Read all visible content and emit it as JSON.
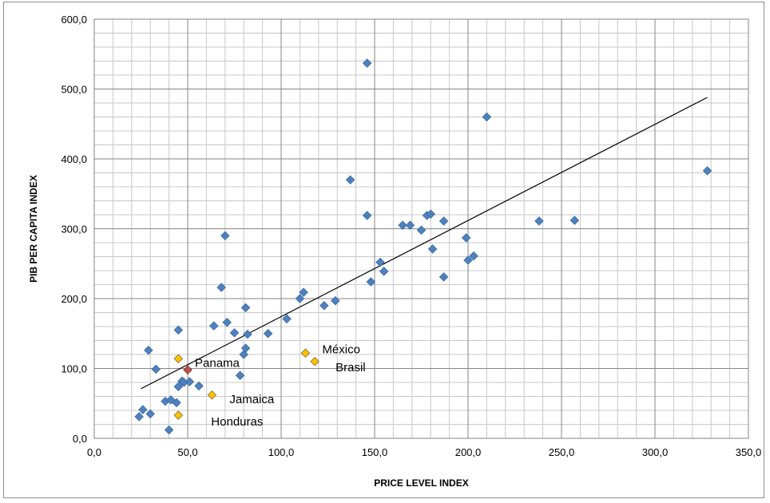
{
  "chart_data": {
    "type": "scatter",
    "title": "",
    "xlabel": "PRICE LEVEL INDEX",
    "ylabel": "PIB PER CAPITA INDEX",
    "xlim": [
      0,
      350
    ],
    "ylim": [
      0,
      600
    ],
    "x_major_ticks": [
      0,
      50,
      100,
      150,
      200,
      250,
      300,
      350
    ],
    "y_major_ticks": [
      0,
      100,
      200,
      300,
      400,
      500,
      600
    ],
    "x_tick_labels": [
      "0,0",
      "50,0",
      "100,0",
      "150,0",
      "200,0",
      "250,0",
      "300,0",
      "350,0"
    ],
    "y_tick_labels": [
      "0,0",
      "100,0",
      "200,0",
      "300,0",
      "400,0",
      "500,0",
      "600,0"
    ],
    "grid": true,
    "legend": "none",
    "colors": {
      "main": "#4f81bd",
      "highlight": "#ffc000",
      "panama": "#c0504d",
      "trendline": "#000000",
      "grid_major": "#868686",
      "grid_minor": "#c8c8c8"
    },
    "series": [
      {
        "points": [
          [
            24,
            31
          ],
          [
            26,
            41
          ],
          [
            29,
            126
          ],
          [
            30,
            35
          ],
          [
            33,
            99
          ],
          [
            38,
            53
          ],
          [
            40,
            12
          ],
          [
            41,
            55
          ],
          [
            44,
            51
          ],
          [
            45,
            155
          ],
          [
            45,
            74
          ],
          [
            47,
            82
          ],
          [
            48,
            80
          ],
          [
            51,
            81
          ],
          [
            56,
            75
          ],
          [
            64,
            161
          ],
          [
            68,
            216
          ],
          [
            70,
            290
          ],
          [
            71,
            166
          ],
          [
            75,
            151
          ],
          [
            78,
            90
          ],
          [
            80,
            120
          ],
          [
            81,
            187
          ],
          [
            81,
            129
          ],
          [
            82,
            149
          ],
          [
            93,
            150
          ],
          [
            103,
            171
          ],
          [
            110,
            200
          ],
          [
            112,
            209
          ],
          [
            123,
            190
          ],
          [
            129,
            197
          ],
          [
            137,
            370
          ],
          [
            146,
            319
          ],
          [
            146,
            537
          ],
          [
            148,
            224
          ],
          [
            153,
            252
          ],
          [
            155,
            239
          ],
          [
            165,
            305
          ],
          [
            169,
            305
          ],
          [
            175,
            298
          ],
          [
            178,
            319
          ],
          [
            180,
            321
          ],
          [
            181,
            271
          ],
          [
            187,
            231
          ],
          [
            187,
            311
          ],
          [
            199,
            287
          ],
          [
            200,
            255
          ],
          [
            203,
            261
          ],
          [
            210,
            460
          ],
          [
            238,
            311
          ],
          [
            257,
            312
          ],
          [
            328,
            383
          ]
        ]
      },
      {
        "points": [
          {
            "x": 113,
            "y": 122,
            "label": "México"
          },
          {
            "x": 118,
            "y": 110,
            "label": "Brasil"
          },
          {
            "x": 45,
            "y": 114,
            "label": ""
          },
          {
            "x": 63,
            "y": 62,
            "label": "Jamaica"
          },
          {
            "x": 45,
            "y": 33,
            "label": "Honduras"
          }
        ]
      },
      {
        "points": [
          {
            "x": 50,
            "y": 98,
            "label": "Panama"
          }
        ]
      }
    ],
    "trendline": {
      "type": "linear",
      "from": [
        25,
        71
      ],
      "to": [
        328,
        488
      ]
    }
  }
}
